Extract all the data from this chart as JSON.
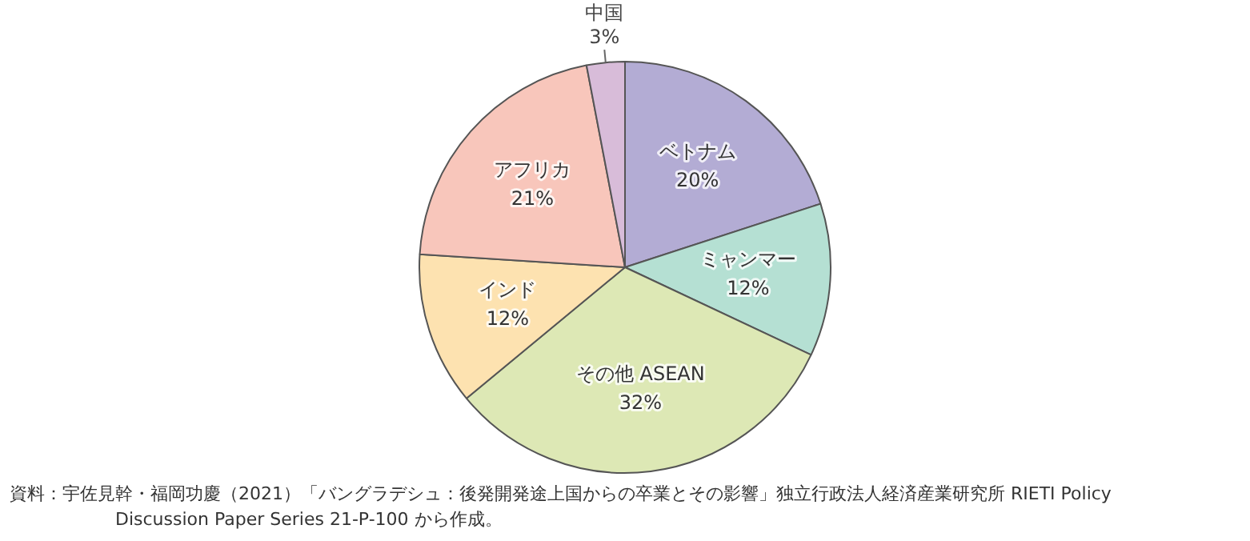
{
  "chart_data": {
    "type": "pie",
    "categories": [
      "ベトナム",
      "ミャンマー",
      "その他 ASEAN",
      "インド",
      "アフリカ",
      "中国"
    ],
    "values": [
      20,
      12,
      32,
      12,
      21,
      3
    ],
    "value_labels": [
      "20%",
      "12%",
      "32%",
      "12%",
      "21%",
      "3%"
    ],
    "colors": [
      "#b3acd4",
      "#b5e0d3",
      "#dde8b5",
      "#fde2b0",
      "#f8c6bb",
      "#d8bcd9"
    ],
    "legend": false,
    "annotations": [
      "資料：宇佐見幹・福岡功慶（2021）「バングラデシュ：後発開発途上国からの卒業とその影響」独立行政法人経済産業研究所 RIETI Policy Discussion Paper Series 21-P-100 から作成。"
    ]
  }
}
